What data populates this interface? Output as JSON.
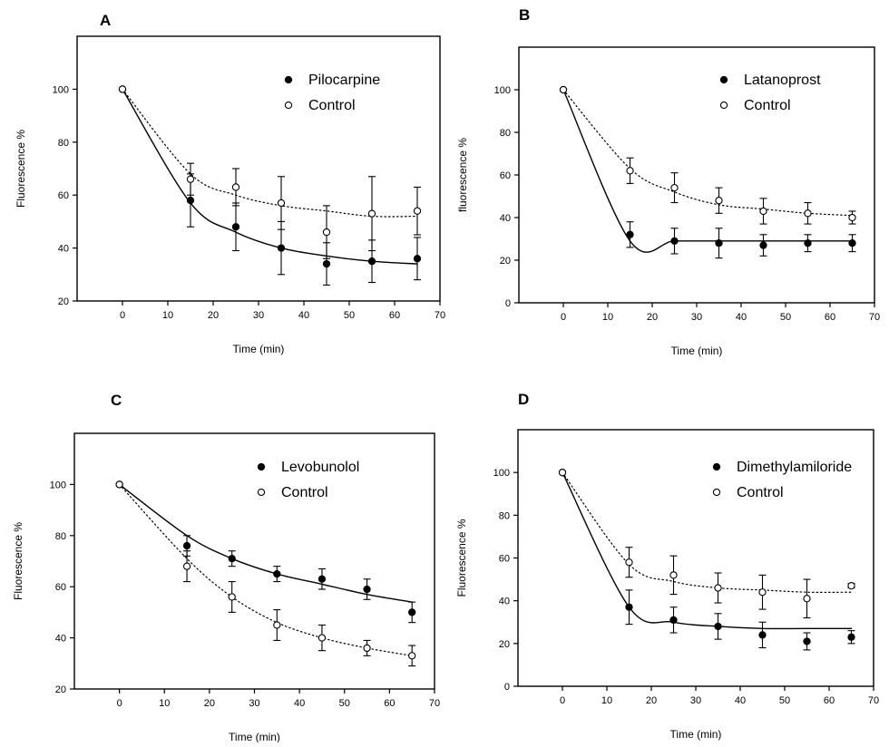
{
  "chart_data": [
    {
      "panel_label": "A",
      "type": "scatter",
      "xlabel": "Time (min)",
      "ylabel": "Fluorescence %",
      "xlim": [
        -10,
        70
      ],
      "ylim": [
        20,
        120
      ],
      "xticks": [
        0,
        10,
        20,
        30,
        40,
        50,
        60,
        70
      ],
      "yticks": [
        20,
        40,
        60,
        80,
        100
      ],
      "legend_position": "top-right",
      "series": [
        {
          "name": "Pilocarpine",
          "marker": "filled",
          "line": "solid",
          "x": [
            0,
            15,
            25,
            35,
            45,
            55,
            65
          ],
          "y": [
            100,
            58,
            48,
            40,
            34,
            35,
            36
          ],
          "err": [
            0,
            10,
            9,
            10,
            8,
            8,
            8
          ],
          "fit": [
            100,
            57,
            46,
            40,
            37,
            35,
            34
          ]
        },
        {
          "name": "Control",
          "marker": "open",
          "line": "dotted",
          "x": [
            0,
            15,
            25,
            35,
            45,
            55,
            65
          ],
          "y": [
            100,
            66,
            63,
            57,
            46,
            53,
            54
          ],
          "err": [
            0,
            6,
            7,
            10,
            10,
            14,
            9
          ],
          "fit": [
            100,
            68,
            60,
            56,
            54,
            52,
            52
          ]
        }
      ]
    },
    {
      "panel_label": "B",
      "type": "scatter",
      "xlabel": "Time (min)",
      "ylabel": "fluorescence %",
      "xlim": [
        -10,
        70
      ],
      "ylim": [
        0,
        120
      ],
      "xticks": [
        0,
        10,
        20,
        30,
        40,
        50,
        60,
        70
      ],
      "yticks": [
        0,
        20,
        40,
        60,
        80,
        100
      ],
      "legend_position": "top-right",
      "series": [
        {
          "name": "Latanoprost",
          "marker": "filled",
          "line": "solid",
          "x": [
            0,
            15,
            25,
            35,
            45,
            55,
            65
          ],
          "y": [
            100,
            32,
            29,
            28,
            27,
            28,
            28
          ],
          "err": [
            0,
            6,
            6,
            7,
            5,
            4,
            4
          ],
          "fit": [
            100,
            29,
            29,
            29,
            29,
            29,
            29
          ]
        },
        {
          "name": "Control",
          "marker": "open",
          "line": "dotted",
          "x": [
            0,
            15,
            25,
            35,
            45,
            55,
            65
          ],
          "y": [
            100,
            62,
            54,
            48,
            43,
            42,
            40
          ],
          "err": [
            0,
            6,
            7,
            6,
            6,
            5,
            3
          ],
          "fit": [
            100,
            63,
            52,
            46,
            44,
            42,
            41
          ]
        }
      ]
    },
    {
      "panel_label": "C",
      "type": "scatter",
      "xlabel": "Time (min)",
      "ylabel": "Fluorescence %",
      "xlim": [
        -10,
        70
      ],
      "ylim": [
        20,
        120
      ],
      "xticks": [
        0,
        10,
        20,
        30,
        40,
        50,
        60,
        70
      ],
      "yticks": [
        20,
        40,
        60,
        80,
        100
      ],
      "legend_position": "top-right",
      "series": [
        {
          "name": "Levobunolol",
          "marker": "filled",
          "line": "solid",
          "x": [
            0,
            15,
            25,
            35,
            45,
            55,
            65
          ],
          "y": [
            100,
            76,
            71,
            65,
            63,
            59,
            50
          ],
          "err": [
            0,
            4,
            3,
            3,
            4,
            4,
            4
          ],
          "fit": [
            100,
            80,
            71,
            65,
            61,
            57,
            54
          ]
        },
        {
          "name": "Control",
          "marker": "open",
          "line": "dotted",
          "x": [
            0,
            15,
            25,
            35,
            45,
            55,
            65
          ],
          "y": [
            100,
            68,
            56,
            45,
            40,
            36,
            33
          ],
          "err": [
            0,
            6,
            6,
            6,
            5,
            3,
            4
          ],
          "fit": [
            100,
            71,
            56,
            46,
            40,
            36,
            33
          ]
        }
      ]
    },
    {
      "panel_label": "D",
      "type": "scatter",
      "xlabel": "Time (min)",
      "ylabel": "Fluorescence %",
      "xlim": [
        -10,
        70
      ],
      "ylim": [
        0,
        120
      ],
      "xticks": [
        0,
        10,
        20,
        30,
        40,
        50,
        60,
        70
      ],
      "yticks": [
        0,
        20,
        40,
        60,
        80,
        100
      ],
      "legend_position": "top-right",
      "series": [
        {
          "name": "Dimethylamiloride",
          "marker": "filled",
          "line": "solid",
          "x": [
            0,
            15,
            25,
            35,
            45,
            55,
            65
          ],
          "y": [
            100,
            37,
            31,
            28,
            24,
            21,
            23
          ],
          "err": [
            0,
            8,
            6,
            6,
            6,
            4,
            3
          ],
          "fit": [
            100,
            37,
            30,
            28,
            27,
            27,
            27
          ]
        },
        {
          "name": "Control",
          "marker": "open",
          "line": "dotted",
          "x": [
            0,
            15,
            25,
            35,
            45,
            55,
            65
          ],
          "y": [
            100,
            58,
            52,
            46,
            44,
            41,
            47
          ],
          "err": [
            0,
            7,
            9,
            7,
            8,
            9,
            1
          ],
          "fit": [
            100,
            57,
            49,
            46,
            45,
            44,
            44
          ]
        }
      ]
    }
  ]
}
